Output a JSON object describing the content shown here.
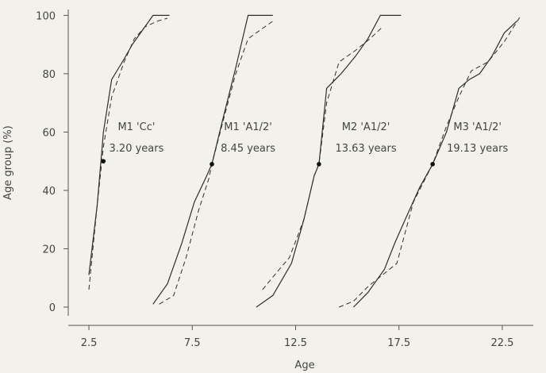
{
  "chart_data": {
    "type": "line",
    "xlabel": "Age",
    "ylabel": "Age group (%)",
    "xlim": [
      1.5,
      24
    ],
    "ylim": [
      -3,
      102
    ],
    "xticks": [
      2.5,
      7.5,
      12.5,
      17.5,
      22.5
    ],
    "xtick_labels": [
      "2.5",
      "7.5",
      "12.5",
      "17.5",
      "22.5"
    ],
    "yticks": [
      0,
      20,
      40,
      60,
      80,
      100
    ],
    "ytick_labels": [
      "0",
      "20",
      "40",
      "60",
      "80",
      "100"
    ],
    "grid": false,
    "legend": "none",
    "series": [
      {
        "group": "M1 'Cc'",
        "style": "solid",
        "x": [
          2.5,
          2.9,
          3.2,
          3.6,
          4.2,
          4.6,
          5.0,
          5.6,
          6.2,
          6.4
        ],
        "y": [
          11,
          35,
          60,
          78,
          85,
          90,
          94,
          100,
          100,
          100
        ]
      },
      {
        "group": "M1 'Cc'",
        "style": "dashed",
        "x": [
          2.5,
          2.9,
          3.2,
          3.6,
          4.2,
          4.7,
          5.2,
          5.8,
          6.3
        ],
        "y": [
          6,
          35,
          55,
          72,
          84,
          92,
          96,
          98,
          99
        ]
      },
      {
        "group": "M1 'A1/2'",
        "style": "solid",
        "x": [
          5.6,
          6.3,
          7.0,
          7.6,
          8.2,
          8.45,
          9.0,
          9.6,
          10.2,
          10.7,
          11.4
        ],
        "y": [
          1,
          8,
          22,
          36,
          45,
          49,
          65,
          82,
          100,
          100,
          100
        ]
      },
      {
        "group": "M1 'A1/2'",
        "style": "dashed",
        "x": [
          5.9,
          6.6,
          7.2,
          7.8,
          8.3,
          8.45,
          9.0,
          9.6,
          10.2,
          10.8,
          11.4
        ],
        "y": [
          1,
          4,
          17,
          33,
          44,
          49,
          64,
          80,
          92,
          95,
          98
        ]
      },
      {
        "group": "M2 'A1/2'",
        "style": "solid",
        "x": [
          10.6,
          11.4,
          12.3,
          12.9,
          13.4,
          13.63,
          14.0,
          14.7,
          15.4,
          16.0,
          16.6,
          17.0,
          17.6
        ],
        "y": [
          0,
          4,
          15,
          30,
          45,
          49,
          75,
          80,
          86,
          92,
          100,
          100,
          100
        ]
      },
      {
        "group": "M2 'A1/2'",
        "style": "dashed",
        "x": [
          10.9,
          11.6,
          12.2,
          12.9,
          13.4,
          13.63,
          14.0,
          14.6,
          15.4,
          16.1,
          16.7
        ],
        "y": [
          6,
          12,
          17,
          30,
          45,
          49,
          70,
          84,
          88,
          92,
          96
        ]
      },
      {
        "group": "M3 'A1/2'",
        "style": "solid",
        "x": [
          15.3,
          16.0,
          16.8,
          17.3,
          17.8,
          18.5,
          19.13,
          19.8,
          20.4,
          20.9,
          21.4,
          22.0,
          22.6,
          23.2
        ],
        "y": [
          0,
          5,
          13,
          22,
          30,
          41,
          49,
          60,
          75,
          78,
          80,
          86,
          94,
          98
        ]
      },
      {
        "group": "M3 'A1/2'",
        "style": "dashed",
        "x": [
          14.6,
          15.3,
          16.0,
          16.7,
          17.4,
          18.2,
          19.13,
          19.8,
          20.4,
          21.0,
          21.8,
          22.6,
          23.4
        ],
        "y": [
          0,
          2,
          7,
          11,
          15,
          36,
          49,
          62,
          72,
          81,
          84,
          91,
          100
        ]
      }
    ],
    "markers": [
      {
        "x": 3.2,
        "y": 50
      },
      {
        "x": 8.45,
        "y": 49
      },
      {
        "x": 13.63,
        "y": 49
      },
      {
        "x": 19.13,
        "y": 49
      }
    ],
    "annotations": [
      {
        "line1": "M1 'Cc'",
        "line2": "3.20 years",
        "x": 4.8,
        "y": 62,
        "y2": 56
      },
      {
        "line1": "M1 'A1/2'",
        "line2": "8.45 years",
        "x": 10.2,
        "y": 62,
        "y2": 56
      },
      {
        "line1": "M2 'A1/2'",
        "line2": "13.63 years",
        "x": 15.9,
        "y": 62,
        "y2": 56
      },
      {
        "line1": "M3 'A1/2'",
        "line2": "19.13 years",
        "x": 21.3,
        "y": 62,
        "y2": 56
      }
    ],
    "colors": {
      "line": "#2e2e2e",
      "axis": "#555555",
      "background": "#f2f1ec"
    }
  }
}
